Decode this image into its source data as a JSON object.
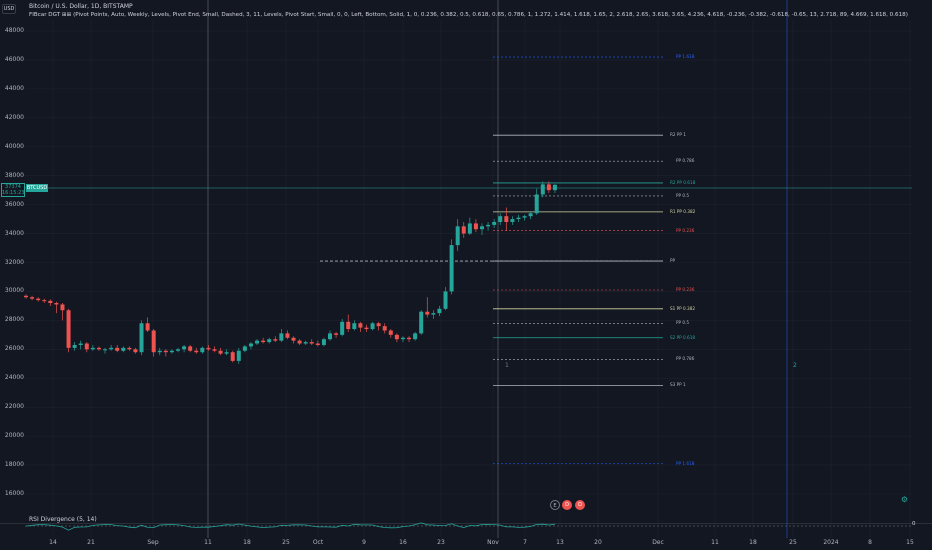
{
  "header": {
    "currency_button": "USD",
    "title": "Bitcoin / U.S. Dollar, 1D, BITSTAMP",
    "indicator": "FIBcar DGT ⊞⊞ (Pivot Points, Auto, Weekly, Levels, Pivot End, Small, Dashed, 3, 11, Levels, Pivot Start, Small, 0, 0, Left, Bottom, Solid, 1, 0, 0.236, 0.382, 0.5, 0.618, 0.65, 0.786, 1, 1.272, 1.414, 1.618, 1.65, 2, 2.618, 2.65, 3.618, 3.65, 4.236, 4.618, -0.236, -0.382, -0.618, -0.65, 13, 2.718, 89, 4.669, 1.618, 0.618)"
  },
  "price_axis": [
    "48000",
    "46000",
    "44000",
    "42000",
    "40000",
    "38000",
    "36000",
    "34000",
    "32000",
    "30000",
    "28000",
    "26000",
    "24000",
    "22000",
    "20000",
    "18000",
    "16000"
  ],
  "current_price": {
    "value": "37374",
    "countdown": "16:15:23",
    "symbol": "BTCUSD"
  },
  "time_axis": [
    "14",
    "21",
    "Sep",
    "11",
    "18",
    "25",
    "Oct",
    "9",
    "16",
    "23",
    "Nov",
    "7",
    "13",
    "20",
    "Dec",
    "11",
    "18",
    "25",
    "2024",
    "8",
    "15"
  ],
  "pivot_labels": {
    "r3_1618": "PP 1.618",
    "r2_1": "R2 PP 1",
    "r2_0786": "PP 0.786",
    "r2_0618": "R2 PP 0.618",
    "r2_05": "PP 0.5",
    "r1_0382": "R1 PP 0.382",
    "r1_0236": "PP 0.236",
    "pp": "PP",
    "s1_0236": "PP 0.236",
    "s1_0382": "S1 PP 0.382",
    "s1_05": "PP 0.5",
    "s2_0618": "S2 PP 0.618",
    "s2_0786": "PP 0.786",
    "s3_1": "S3 PP 1",
    "s3_1618": "PP 1.618"
  },
  "markers": {
    "m1": "1",
    "m2": "2"
  },
  "events": [
    "E",
    "D",
    "D"
  ],
  "rsi": {
    "label": "RSI Divergence (5, 14)",
    "zero": "0"
  },
  "colors": {
    "background": "#131722",
    "up": "#26a69a",
    "down": "#ef5350",
    "grid": "#1f2330"
  },
  "chart_data": {
    "type": "candlestick",
    "title": "Bitcoin / U.S. Dollar, 1D, BITSTAMP",
    "ylim": [
      15000,
      49000
    ],
    "current_price": 37374,
    "candles": [
      [
        29700,
        29800,
        29500,
        29600
      ],
      [
        29600,
        29700,
        29400,
        29500
      ],
      [
        29500,
        29600,
        29300,
        29400
      ],
      [
        29400,
        29500,
        29200,
        29350
      ],
      [
        29350,
        29450,
        29000,
        29200
      ],
      [
        29200,
        29300,
        28500,
        29100
      ],
      [
        29100,
        29200,
        28000,
        28700
      ],
      [
        28700,
        28800,
        25800,
        26100
      ],
      [
        26100,
        26500,
        25900,
        26300
      ],
      [
        26300,
        26600,
        26000,
        26400
      ],
      [
        26400,
        26500,
        25800,
        26000
      ],
      [
        26000,
        26300,
        25900,
        26100
      ],
      [
        26100,
        26200,
        25900,
        26000
      ],
      [
        26000,
        26100,
        25700,
        26000
      ],
      [
        26000,
        26300,
        25900,
        26100
      ],
      [
        26100,
        26300,
        25800,
        25900
      ],
      [
        25900,
        26200,
        25800,
        26100
      ],
      [
        26100,
        26200,
        25900,
        26000
      ],
      [
        26000,
        26100,
        25700,
        25800
      ],
      [
        25800,
        28000,
        25600,
        27800
      ],
      [
        27800,
        28200,
        27200,
        27300
      ],
      [
        27300,
        27400,
        25500,
        25800
      ],
      [
        25800,
        26100,
        25600,
        25900
      ],
      [
        25900,
        26000,
        25500,
        25800
      ],
      [
        25800,
        26000,
        25700,
        25900
      ],
      [
        25900,
        26100,
        25800,
        26000
      ],
      [
        26000,
        26300,
        25800,
        26200
      ],
      [
        26200,
        26300,
        25800,
        25900
      ],
      [
        25900,
        26100,
        25700,
        25800
      ],
      [
        25800,
        26200,
        25700,
        26100
      ],
      [
        26100,
        26300,
        25900,
        26000
      ],
      [
        26000,
        26200,
        25800,
        25900
      ],
      [
        25900,
        26100,
        25600,
        25700
      ],
      [
        25700,
        26000,
        25600,
        25800
      ],
      [
        25800,
        25900,
        25100,
        25200
      ],
      [
        25200,
        26100,
        25000,
        25900
      ],
      [
        25900,
        26300,
        25800,
        26200
      ],
      [
        26200,
        26500,
        26000,
        26400
      ],
      [
        26400,
        26700,
        26300,
        26600
      ],
      [
        26600,
        26800,
        26400,
        26500
      ],
      [
        26500,
        26800,
        26400,
        26700
      ],
      [
        26700,
        26900,
        26500,
        26600
      ],
      [
        26600,
        27400,
        26500,
        27100
      ],
      [
        27100,
        27300,
        26700,
        26800
      ],
      [
        26800,
        26900,
        26400,
        26600
      ],
      [
        26600,
        26700,
        26300,
        26400
      ],
      [
        26400,
        26600,
        26300,
        26500
      ],
      [
        26500,
        26700,
        26300,
        26400
      ],
      [
        26400,
        26600,
        26200,
        26300
      ],
      [
        26300,
        26800,
        26200,
        26700
      ],
      [
        26700,
        27300,
        26600,
        27100
      ],
      [
        27100,
        27200,
        26800,
        27000
      ],
      [
        27000,
        28100,
        26900,
        27900
      ],
      [
        27900,
        28400,
        27200,
        27400
      ],
      [
        27400,
        28000,
        27300,
        27800
      ],
      [
        27800,
        27900,
        27200,
        27500
      ],
      [
        27500,
        27700,
        27200,
        27400
      ],
      [
        27400,
        27900,
        27300,
        27800
      ],
      [
        27800,
        27900,
        27300,
        27600
      ],
      [
        27600,
        27800,
        27100,
        27300
      ],
      [
        27300,
        27400,
        26800,
        27000
      ],
      [
        27000,
        27100,
        26500,
        26700
      ],
      [
        26700,
        26900,
        26500,
        26800
      ],
      [
        26800,
        26900,
        26500,
        26700
      ],
      [
        26700,
        27200,
        26600,
        27100
      ],
      [
        27100,
        28700,
        27000,
        28600
      ],
      [
        28600,
        29600,
        28200,
        28400
      ],
      [
        28400,
        28700,
        28100,
        28500
      ],
      [
        28500,
        29000,
        28300,
        28800
      ],
      [
        28800,
        30300,
        28700,
        30000
      ],
      [
        30000,
        33600,
        29800,
        33200
      ],
      [
        33200,
        35000,
        32800,
        34500
      ],
      [
        34500,
        34800,
        33700,
        34000
      ],
      [
        34000,
        35100,
        33900,
        34700
      ],
      [
        34700,
        35000,
        34100,
        34300
      ],
      [
        34300,
        34700,
        33900,
        34500
      ],
      [
        34500,
        34800,
        34200,
        34600
      ],
      [
        34600,
        35000,
        34400,
        34800
      ],
      [
        34800,
        35400,
        34600,
        35200
      ],
      [
        35200,
        35800,
        34200,
        34800
      ],
      [
        34800,
        35200,
        34600,
        35000
      ],
      [
        35000,
        35300,
        34800,
        35100
      ],
      [
        35100,
        35300,
        34900,
        35200
      ],
      [
        35200,
        35500,
        35000,
        35400
      ],
      [
        35400,
        37100,
        35300,
        36700
      ],
      [
        36700,
        37600,
        36500,
        37400
      ],
      [
        37400,
        37600,
        36800,
        37000
      ],
      [
        37000,
        37400,
        36800,
        37374
      ]
    ]
  }
}
